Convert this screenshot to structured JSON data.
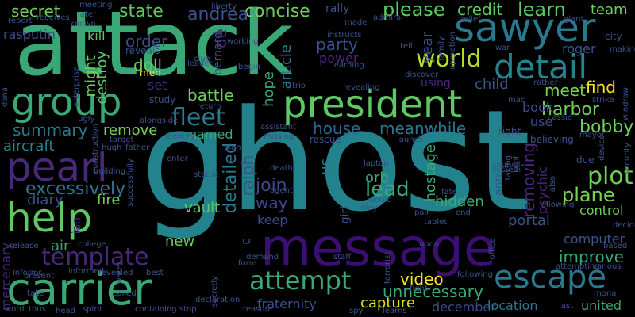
{
  "words": [
    {
      "text": "ghost",
      "color": "#22838c"
    },
    {
      "text": "attack",
      "color": "#3aa876"
    },
    {
      "text": "message",
      "color": "#3b0f70"
    },
    {
      "text": "president",
      "color": "#5ec962"
    },
    {
      "text": "sawyer",
      "color": "#2a788e"
    },
    {
      "text": "carrier",
      "color": "#3aa876"
    },
    {
      "text": "group",
      "color": "#3aa876"
    },
    {
      "text": "pearl",
      "color": "#482878"
    },
    {
      "text": "help",
      "color": "#5ec962"
    },
    {
      "text": "escape",
      "color": "#2a788e"
    },
    {
      "text": "detail",
      "color": "#26828e"
    },
    {
      "text": "world",
      "color": "#b5de2b"
    },
    {
      "text": "attempt",
      "color": "#3aa876"
    },
    {
      "text": "template",
      "color": "#482878"
    },
    {
      "text": "fleet",
      "color": "#2a788e"
    },
    {
      "text": "excessively",
      "color": "#2a788e"
    },
    {
      "text": "plot",
      "color": "#6ece58"
    },
    {
      "text": "plane",
      "color": "#7ad151"
    },
    {
      "text": "secret",
      "color": "#6ece58"
    },
    {
      "text": "state",
      "color": "#5ec962"
    },
    {
      "text": "concise",
      "color": "#6ece58"
    },
    {
      "text": "please",
      "color": "#5ec962"
    },
    {
      "text": "credit",
      "color": "#5ec962"
    },
    {
      "text": "learn",
      "color": "#5ec962"
    },
    {
      "text": "team",
      "color": "#6ece58"
    },
    {
      "text": "andrea",
      "color": "#3b528b"
    },
    {
      "text": "party",
      "color": "#3b528b"
    },
    {
      "text": "power",
      "color": "#482878"
    },
    {
      "text": "order",
      "color": "#3e4989"
    },
    {
      "text": "doll",
      "color": "#5ec962"
    },
    {
      "text": "battle",
      "color": "#6ece58"
    },
    {
      "text": "meet",
      "color": "#7ad151"
    },
    {
      "text": "find",
      "color": "#fde725"
    },
    {
      "text": "harbor",
      "color": "#6ece58"
    },
    {
      "text": "bobby",
      "color": "#6ece58"
    },
    {
      "text": "house",
      "color": "#31688e"
    },
    {
      "text": "meanwhile",
      "color": "#2a788e"
    },
    {
      "text": "summary",
      "color": "#2a788e"
    },
    {
      "text": "remove",
      "color": "#7ad151"
    },
    {
      "text": "named",
      "color": "#3aa876"
    },
    {
      "text": "aircraft",
      "color": "#26828e"
    },
    {
      "text": "diary",
      "color": "#3b528b"
    },
    {
      "text": "fire",
      "color": "#6ece58"
    },
    {
      "text": "join",
      "color": "#3e4989"
    },
    {
      "text": "way",
      "color": "#3e4989"
    },
    {
      "text": "lead",
      "color": "#3aa876"
    },
    {
      "text": "orb",
      "color": "#3aa876"
    },
    {
      "text": "hidden",
      "color": "#3aa876"
    },
    {
      "text": "vault",
      "color": "#5ec962"
    },
    {
      "text": "keep",
      "color": "#3e4989"
    },
    {
      "text": "control",
      "color": "#6ece58"
    },
    {
      "text": "portal",
      "color": "#3b528b"
    },
    {
      "text": "computer",
      "color": "#3b528b"
    },
    {
      "text": "improve",
      "color": "#3aa876"
    },
    {
      "text": "video",
      "color": "#fde725"
    },
    {
      "text": "unnecessary",
      "color": "#3aa876"
    },
    {
      "text": "capture",
      "color": "#dde318"
    },
    {
      "text": "fraternity",
      "color": "#3b528b"
    },
    {
      "text": "december",
      "color": "#3e4989"
    },
    {
      "text": "united",
      "color": "#3aa876"
    },
    {
      "text": "new",
      "color": "#6ece58"
    },
    {
      "text": "air",
      "color": "#3aa876"
    },
    {
      "text": "book",
      "color": "#3e4989"
    },
    {
      "text": "use",
      "color": "#3e4989"
    },
    {
      "text": "child",
      "color": "#3b528b"
    },
    {
      "text": "set",
      "color": "#482878"
    },
    {
      "text": "kill",
      "color": "#5ec962"
    },
    {
      "text": "men",
      "color": "#fde725"
    },
    {
      "text": "roger",
      "color": "#3b528b"
    },
    {
      "text": "using",
      "color": "#482878"
    },
    {
      "text": "rescue",
      "color": "#3e4989"
    },
    {
      "text": "location",
      "color": "#2a788e"
    },
    {
      "text": "psychic",
      "color": "#482878"
    },
    {
      "text": "us",
      "color": "#2a788e"
    },
    {
      "text": "year",
      "color": "#3b528b"
    },
    {
      "text": "article",
      "color": "#2a788e"
    },
    {
      "text": "hope",
      "color": "#3aa876"
    },
    {
      "text": "detailed",
      "color": "#2a788e"
    },
    {
      "text": "ralph",
      "color": "#3b528b"
    },
    {
      "text": "bernard",
      "color": "#3b528b"
    },
    {
      "text": "de",
      "color": "#482878"
    },
    {
      "text": "destroy",
      "color": "#5ec962"
    },
    {
      "text": "might",
      "color": "#6ece58"
    },
    {
      "text": "hostage",
      "color": "#3aa876"
    },
    {
      "text": "removing",
      "color": "#482878"
    },
    {
      "text": "anti",
      "color": "#3b528b"
    },
    {
      "text": "mercenary",
      "color": "#482878"
    },
    {
      "text": "ian",
      "color": "#482878"
    },
    {
      "text": "c",
      "color": "#3b528b"
    },
    {
      "text": "girl",
      "color": "#3b528b"
    },
    {
      "text": "rally",
      "color": "#3b528b"
    },
    {
      "text": "made",
      "color": "#3b528b"
    },
    {
      "text": "instructs",
      "color": "#3b528b"
    },
    {
      "text": "liberty",
      "color": "#3b528b"
    },
    {
      "text": "meeting",
      "color": "#3b528b"
    },
    {
      "text": "later",
      "color": "#3b528b"
    },
    {
      "text": "receives",
      "color": "#3b528b"
    },
    {
      "text": "known",
      "color": "#3b528b"
    },
    {
      "text": "report",
      "color": "#3b528b"
    },
    {
      "text": "rasputin",
      "color": "#3e4989"
    },
    {
      "text": "enterprise",
      "color": "#3b528b"
    },
    {
      "text": "reveals",
      "color": "#3b528b"
    },
    {
      "text": "working",
      "color": "#3b528b"
    },
    {
      "text": "leader",
      "color": "#3b528b"
    },
    {
      "text": "clue",
      "color": "#3b528b"
    },
    {
      "text": "begin",
      "color": "#3b528b"
    },
    {
      "text": "learning",
      "color": "#3b528b"
    },
    {
      "text": "trio",
      "color": "#3b528b"
    },
    {
      "text": "revealing",
      "color": "#3b528b"
    },
    {
      "text": "discover",
      "color": "#3b528b"
    },
    {
      "text": "tell",
      "color": "#3b528b"
    },
    {
      "text": "family",
      "color": "#3b528b"
    },
    {
      "text": "operation",
      "color": "#3b528b"
    },
    {
      "text": "admiral",
      "color": "#3b528b"
    },
    {
      "text": "belief",
      "color": "#3b528b"
    },
    {
      "text": "giant",
      "color": "#3b528b"
    },
    {
      "text": "city",
      "color": "#3e4989"
    },
    {
      "text": "making",
      "color": "#3b528b"
    },
    {
      "text": "war",
      "color": "#3b528b"
    },
    {
      "text": "mac",
      "color": "#3b528b"
    },
    {
      "text": "rather",
      "color": "#3b528b"
    },
    {
      "text": "strike",
      "color": "#3b528b"
    },
    {
      "text": "council",
      "color": "#3b528b"
    },
    {
      "text": "mayor",
      "color": "#3b528b"
    },
    {
      "text": "cassie",
      "color": "#3b528b"
    },
    {
      "text": "security",
      "color": "#3b528b"
    },
    {
      "text": "windraw",
      "color": "#3b528b"
    },
    {
      "text": "due",
      "color": "#3b528b"
    },
    {
      "text": "believing",
      "color": "#3b528b"
    },
    {
      "text": "also",
      "color": "#3b528b"
    },
    {
      "text": "right",
      "color": "#3b528b"
    },
    {
      "text": "system",
      "color": "#3b528b"
    },
    {
      "text": "device",
      "color": "#3b528b"
    },
    {
      "text": "taking",
      "color": "#3b528b"
    },
    {
      "text": "allowing",
      "color": "#3b528b"
    },
    {
      "text": "end",
      "color": "#3b528b"
    },
    {
      "text": "decides",
      "color": "#3b528b"
    },
    {
      "text": "based",
      "color": "#3b528b"
    },
    {
      "text": "various",
      "color": "#3b528b"
    },
    {
      "text": "attempting",
      "color": "#3b528b"
    },
    {
      "text": "kept",
      "color": "#3b528b"
    },
    {
      "text": "following",
      "color": "#3b528b"
    },
    {
      "text": "mona",
      "color": "#3b528b"
    },
    {
      "text": "last",
      "color": "#3b528b"
    },
    {
      "text": "upon",
      "color": "#3b528b"
    },
    {
      "text": "tablet",
      "color": "#3b528b"
    },
    {
      "text": "pair",
      "color": "#3b528b"
    },
    {
      "text": "fate",
      "color": "#3b528b"
    },
    {
      "text": "would",
      "color": "#3b528b"
    },
    {
      "text": "riley",
      "color": "#3b528b"
    },
    {
      "text": "laptop",
      "color": "#3b528b"
    },
    {
      "text": "launch",
      "color": "#3b528b"
    },
    {
      "text": "missing",
      "color": "#3b528b"
    },
    {
      "text": "assistant",
      "color": "#3b528b"
    },
    {
      "text": "death",
      "color": "#3b528b"
    },
    {
      "text": "agent",
      "color": "#3b528b"
    },
    {
      "text": "demand",
      "color": "#3b528b"
    },
    {
      "text": "form",
      "color": "#3b528b"
    },
    {
      "text": "staff",
      "color": "#3b528b"
    },
    {
      "text": "terrorist",
      "color": "#3b528b"
    },
    {
      "text": "fight",
      "color": "#3b528b"
    },
    {
      "text": "spy",
      "color": "#3b528b"
    },
    {
      "text": "learns",
      "color": "#3b528b"
    },
    {
      "text": "treasure",
      "color": "#3b528b"
    },
    {
      "text": "stop",
      "color": "#3b528b"
    },
    {
      "text": "declaration",
      "color": "#3b528b"
    },
    {
      "text": "office",
      "color": "#3b528b"
    },
    {
      "text": "best",
      "color": "#3b528b"
    },
    {
      "text": "revealed",
      "color": "#3b528b"
    },
    {
      "text": "informed",
      "color": "#3b528b"
    },
    {
      "text": "present",
      "color": "#3b528b"
    },
    {
      "text": "informs",
      "color": "#3b528b"
    },
    {
      "text": "take",
      "color": "#3b528b"
    },
    {
      "text": "word",
      "color": "#3b528b"
    },
    {
      "text": "thus",
      "color": "#3b528b"
    },
    {
      "text": "head",
      "color": "#3b528b"
    },
    {
      "text": "spirit",
      "color": "#3b528b"
    },
    {
      "text": "containing",
      "color": "#3b528b"
    },
    {
      "text": "called",
      "color": "#3b528b"
    },
    {
      "text": "release",
      "color": "#3b528b"
    },
    {
      "text": "college",
      "color": "#3b528b"
    },
    {
      "text": "secretly",
      "color": "#3b528b"
    },
    {
      "text": "building",
      "color": "#3b528b"
    },
    {
      "text": "water",
      "color": "#3b528b"
    },
    {
      "text": "hugh",
      "color": "#3b528b"
    },
    {
      "text": "father",
      "color": "#3b528b"
    },
    {
      "text": "target",
      "color": "#3b528b"
    },
    {
      "text": "successfully",
      "color": "#3b528b"
    },
    {
      "text": "ugly",
      "color": "#3b528b"
    },
    {
      "text": "construction",
      "color": "#3b528b"
    },
    {
      "text": "alongside",
      "color": "#3b528b"
    },
    {
      "text": "identify",
      "color": "#3b528b"
    },
    {
      "text": "enter",
      "color": "#3b528b"
    },
    {
      "text": "statue",
      "color": "#3b528b"
    },
    {
      "text": "study",
      "color": "#3b528b"
    },
    {
      "text": "return",
      "color": "#3b528b"
    },
    {
      "text": "plan",
      "color": "#3b528b"
    },
    {
      "text": "dana",
      "color": "#3b528b"
    }
  ]
}
